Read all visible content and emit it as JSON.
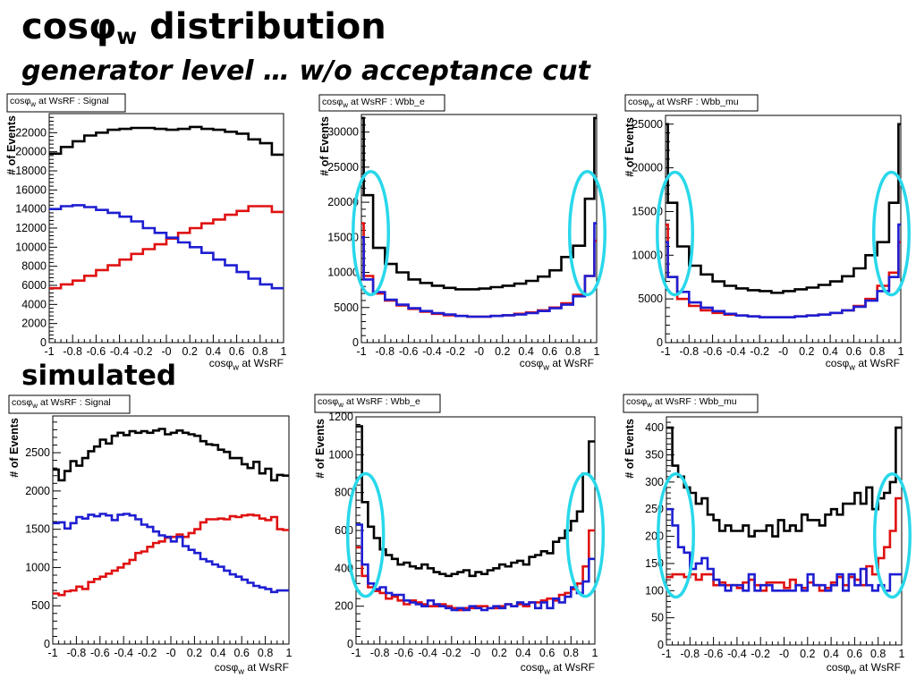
{
  "header": {
    "title_prefix": "cos",
    "title_phi": "φ",
    "title_sub": "w",
    "title_rest": " distribution",
    "subtitle": "generator level … w/o acceptance cut",
    "section_label": "simulated"
  },
  "colors": {
    "total": "#000000",
    "component_red": "#e01010",
    "component_blue": "#1e1ed2",
    "highlight_ellipse": "#29d8ea"
  },
  "chart_data": [
    {
      "type": "histogram",
      "panel": "generator-signal",
      "title_main": "cosφ",
      "title_sub": "w",
      "title_rest": " at WsRF : Signal",
      "xlabel_main": "cosφ",
      "xlabel_sub": "w",
      "xlabel_rest": " at WsRF",
      "ylabel": "# of Events",
      "xlim": [
        -1,
        1
      ],
      "ylim": [
        0,
        24000
      ],
      "x_ticks": [
        "-1",
        "-0.8",
        "-0.6",
        "-0.4",
        "-0.2",
        "-0",
        "0.2",
        "0.4",
        "0.6",
        "0.8",
        "1"
      ],
      "y_ticks": [
        0,
        2000,
        4000,
        6000,
        8000,
        10000,
        12000,
        14000,
        16000,
        18000,
        20000,
        22000
      ],
      "bin_edges": [
        -1,
        -0.9,
        -0.8,
        -0.7,
        -0.6,
        -0.5,
        -0.4,
        -0.3,
        -0.2,
        -0.1,
        0,
        0.1,
        0.2,
        0.3,
        0.4,
        0.5,
        0.6,
        0.7,
        0.8,
        0.9,
        1
      ],
      "series": [
        {
          "color": "#000000",
          "values": [
            19800,
            20500,
            21100,
            21700,
            22000,
            22300,
            22400,
            22500,
            22500,
            22400,
            22300,
            22400,
            22600,
            22400,
            22300,
            22100,
            21900,
            21300,
            20900,
            19700
          ]
        },
        {
          "color": "#e01010",
          "values": [
            5700,
            6100,
            6500,
            7000,
            7600,
            8100,
            8700,
            9300,
            9800,
            10300,
            10900,
            11500,
            12000,
            12500,
            12900,
            13400,
            13800,
            14300,
            14300,
            13700
          ]
        },
        {
          "color": "#1e1ed2",
          "values": [
            14000,
            14300,
            14400,
            14200,
            13900,
            13600,
            13200,
            12700,
            12000,
            11500,
            11000,
            10500,
            10000,
            9400,
            8700,
            8100,
            7400,
            6700,
            6100,
            5700
          ]
        }
      ],
      "ellipses": false
    },
    {
      "type": "histogram",
      "panel": "generator-wbb-e",
      "title_main": "cosφ",
      "title_sub": "w",
      "title_rest": " at WsRF : Wbb_e",
      "xlabel_main": "cosφ",
      "xlabel_sub": "w",
      "xlabel_rest": " at WsRF",
      "ylabel": "# of Events",
      "xlim": [
        -1,
        1
      ],
      "ylim": [
        0,
        32500
      ],
      "x_ticks": [
        "-1",
        "-0.8",
        "-0.6",
        "-0.4",
        "-0.2",
        "-0",
        "0.2",
        "0.4",
        "0.6",
        "0.8",
        "1"
      ],
      "y_ticks": [
        0,
        5000,
        10000,
        15000,
        20000,
        25000,
        30000
      ],
      "bin_edges": [
        -1,
        -0.98,
        -0.9,
        -0.8,
        -0.7,
        -0.6,
        -0.5,
        -0.4,
        -0.3,
        -0.2,
        -0.1,
        0,
        0.1,
        0.2,
        0.3,
        0.4,
        0.5,
        0.6,
        0.7,
        0.8,
        0.9,
        0.98,
        1
      ],
      "series": [
        {
          "color": "#000000",
          "values": [
            32000,
            21000,
            13500,
            11200,
            10000,
            9000,
            8500,
            8100,
            7800,
            7600,
            7600,
            7700,
            7900,
            8100,
            8400,
            8800,
            9400,
            10300,
            12200,
            13800,
            20500,
            32000
          ]
        },
        {
          "color": "#e01010",
          "values": [
            17000,
            9500,
            7000,
            6000,
            5300,
            4800,
            4400,
            4100,
            3900,
            3800,
            3700,
            3700,
            3800,
            3900,
            4100,
            4300,
            4600,
            5000,
            5600,
            6800,
            9500,
            14500
          ]
        },
        {
          "color": "#1e1ed2",
          "values": [
            15000,
            9000,
            7200,
            6100,
            5400,
            4900,
            4500,
            4200,
            4000,
            3800,
            3700,
            3700,
            3800,
            3900,
            4000,
            4200,
            4500,
            4900,
            5400,
            6600,
            9500,
            17000
          ]
        }
      ],
      "ellipses": true
    },
    {
      "type": "histogram",
      "panel": "generator-wbb-mu",
      "title_main": "cosφ",
      "title_sub": "w",
      "title_rest": " at WsRF : Wbb_mu",
      "xlabel_main": "cosφ",
      "xlabel_sub": "w",
      "xlabel_rest": " at WsRF",
      "ylabel": "# of Events",
      "xlim": [
        -1,
        1
      ],
      "ylim": [
        0,
        26000
      ],
      "x_ticks": [
        "-1",
        "-0.8",
        "-0.6",
        "-0.4",
        "-0.2",
        "-0",
        "0.2",
        "0.4",
        "0.6",
        "0.8",
        "1"
      ],
      "y_ticks": [
        0,
        5000,
        10000,
        15000,
        20000,
        25000
      ],
      "bin_edges": [
        -1,
        -0.98,
        -0.9,
        -0.8,
        -0.7,
        -0.6,
        -0.5,
        -0.4,
        -0.3,
        -0.2,
        -0.1,
        0,
        0.1,
        0.2,
        0.3,
        0.4,
        0.5,
        0.6,
        0.7,
        0.8,
        0.9,
        0.98,
        1
      ],
      "series": [
        {
          "color": "#000000",
          "values": [
            25000,
            16000,
            11000,
            8800,
            7800,
            7000,
            6500,
            6200,
            6000,
            5900,
            5700,
            5900,
            6100,
            6300,
            6600,
            7000,
            7600,
            8500,
            10000,
            11500,
            16000,
            25000
          ]
        },
        {
          "color": "#e01010",
          "values": [
            13500,
            7500,
            5000,
            4200,
            3700,
            3400,
            3200,
            3100,
            3000,
            2900,
            2900,
            2900,
            3000,
            3100,
            3200,
            3400,
            3700,
            4200,
            5000,
            6500,
            8000,
            11500
          ]
        },
        {
          "color": "#1e1ed2",
          "values": [
            11500,
            7500,
            5800,
            4600,
            4000,
            3600,
            3300,
            3100,
            3000,
            2900,
            2900,
            2900,
            3000,
            3100,
            3200,
            3400,
            3700,
            4100,
            4800,
            5900,
            7500,
            13500
          ]
        }
      ],
      "ellipses": true
    },
    {
      "type": "histogram",
      "panel": "simulated-signal",
      "title_main": "cosφ",
      "title_sub": "w",
      "title_rest": " at WsRF : Signal",
      "xlabel_main": "cosφ",
      "xlabel_sub": "w",
      "xlabel_rest": " at WsRF",
      "ylabel": "# of Events",
      "xlim": [
        -1,
        1
      ],
      "ylim": [
        0,
        2980
      ],
      "x_ticks": [
        "-1",
        "-0.8",
        "-0.6",
        "-0.4",
        "-0.2",
        "-0",
        "0.2",
        "0.4",
        "0.6",
        "0.8",
        "1"
      ],
      "y_ticks": [
        0,
        500,
        1000,
        1500,
        2000,
        2500
      ],
      "bin_edges": [
        -1,
        -0.95,
        -0.9,
        -0.85,
        -0.8,
        -0.75,
        -0.7,
        -0.65,
        -0.6,
        -0.55,
        -0.5,
        -0.45,
        -0.4,
        -0.35,
        -0.3,
        -0.25,
        -0.2,
        -0.15,
        -0.1,
        -0.05,
        0,
        0.05,
        0.1,
        0.15,
        0.2,
        0.25,
        0.3,
        0.35,
        0.4,
        0.45,
        0.5,
        0.55,
        0.6,
        0.65,
        0.7,
        0.75,
        0.8,
        0.85,
        0.9,
        0.95,
        1
      ],
      "series": [
        {
          "color": "#000000",
          "values": [
            2280,
            2140,
            2260,
            2390,
            2330,
            2430,
            2520,
            2580,
            2670,
            2620,
            2720,
            2760,
            2730,
            2780,
            2760,
            2780,
            2760,
            2790,
            2810,
            2740,
            2760,
            2790,
            2760,
            2740,
            2720,
            2650,
            2610,
            2600,
            2540,
            2510,
            2430,
            2430,
            2350,
            2300,
            2380,
            2230,
            2290,
            2140,
            2210,
            2200
          ]
        },
        {
          "color": "#e01010",
          "values": [
            660,
            640,
            690,
            700,
            750,
            720,
            810,
            850,
            880,
            920,
            960,
            1000,
            1050,
            1100,
            1190,
            1210,
            1270,
            1320,
            1340,
            1390,
            1400,
            1430,
            1400,
            1450,
            1500,
            1590,
            1630,
            1630,
            1640,
            1630,
            1670,
            1660,
            1680,
            1690,
            1680,
            1640,
            1620,
            1660,
            1500,
            1490
          ]
        },
        {
          "color": "#1e1ed2",
          "values": [
            1580,
            1590,
            1510,
            1580,
            1660,
            1640,
            1690,
            1670,
            1700,
            1680,
            1620,
            1690,
            1700,
            1680,
            1630,
            1560,
            1530,
            1470,
            1420,
            1400,
            1340,
            1400,
            1280,
            1230,
            1190,
            1110,
            1080,
            1040,
            1010,
            960,
            910,
            880,
            840,
            800,
            760,
            740,
            720,
            680,
            700,
            700
          ]
        }
      ],
      "ellipses": false
    },
    {
      "type": "histogram",
      "panel": "simulated-wbb-e",
      "title_main": "cosφ",
      "title_sub": "w",
      "title_rest": " at WsRF : Wbb_e",
      "xlabel_main": "cosφ",
      "xlabel_sub": "w",
      "xlabel_rest": " at WsRF",
      "ylabel": "# of Events",
      "xlim": [
        -1,
        1
      ],
      "ylim": [
        0,
        1200
      ],
      "x_ticks": [
        "-1",
        "-0.8",
        "-0.6",
        "-0.4",
        "-0.2",
        "-0",
        "0.2",
        "0.4",
        "0.6",
        "0.8",
        "1"
      ],
      "y_ticks": [
        0,
        200,
        400,
        600,
        800,
        1000,
        1200
      ],
      "bin_edges": [
        -1,
        -0.95,
        -0.9,
        -0.85,
        -0.8,
        -0.75,
        -0.7,
        -0.65,
        -0.6,
        -0.55,
        -0.5,
        -0.45,
        -0.4,
        -0.35,
        -0.3,
        -0.25,
        -0.2,
        -0.15,
        -0.1,
        -0.05,
        0,
        0.05,
        0.1,
        0.15,
        0.2,
        0.25,
        0.3,
        0.35,
        0.4,
        0.45,
        0.5,
        0.55,
        0.6,
        0.65,
        0.7,
        0.75,
        0.8,
        0.85,
        0.9,
        0.95,
        1
      ],
      "series": [
        {
          "color": "#000000",
          "values": [
            1150,
            750,
            620,
            560,
            500,
            470,
            450,
            420,
            430,
            410,
            400,
            420,
            400,
            380,
            370,
            360,
            370,
            380,
            390,
            360,
            380,
            370,
            390,
            400,
            420,
            410,
            430,
            440,
            420,
            460,
            470,
            490,
            480,
            540,
            560,
            600,
            650,
            700,
            900,
            1070
          ]
        },
        {
          "color": "#e01010",
          "values": [
            510,
            360,
            300,
            280,
            270,
            240,
            250,
            230,
            210,
            230,
            220,
            210,
            200,
            200,
            210,
            200,
            190,
            180,
            190,
            190,
            200,
            200,
            190,
            190,
            200,
            210,
            200,
            210,
            200,
            220,
            220,
            230,
            240,
            230,
            260,
            270,
            290,
            320,
            410,
            600
          ]
        },
        {
          "color": "#1e1ed2",
          "values": [
            630,
            420,
            320,
            290,
            300,
            270,
            260,
            260,
            230,
            220,
            210,
            200,
            230,
            210,
            200,
            190,
            180,
            190,
            180,
            200,
            190,
            180,
            190,
            200,
            190,
            210,
            200,
            220,
            210,
            220,
            190,
            220,
            190,
            240,
            220,
            250,
            300,
            270,
            330,
            450
          ]
        }
      ],
      "ellipses": true
    },
    {
      "type": "histogram",
      "panel": "simulated-wbb-mu",
      "title_main": "cosφ",
      "title_sub": "w",
      "title_rest": " at WsRF : Wbb_mu",
      "xlabel_main": "cosφ",
      "xlabel_sub": "w",
      "xlabel_rest": " at WsRF",
      "ylabel": "# of Events",
      "xlim": [
        -1,
        1
      ],
      "ylim": [
        0,
        420
      ],
      "x_ticks": [
        "-1",
        "-0.8",
        "-0.6",
        "-0.4",
        "-0.2",
        "-0",
        "0.2",
        "0.4",
        "0.6",
        "0.8",
        "1"
      ],
      "y_ticks": [
        0,
        50,
        100,
        150,
        200,
        250,
        300,
        350,
        400
      ],
      "bin_edges": [
        -1,
        -0.95,
        -0.9,
        -0.85,
        -0.8,
        -0.75,
        -0.7,
        -0.65,
        -0.6,
        -0.55,
        -0.5,
        -0.45,
        -0.4,
        -0.35,
        -0.3,
        -0.25,
        -0.2,
        -0.15,
        -0.1,
        -0.05,
        0,
        0.05,
        0.1,
        0.15,
        0.2,
        0.25,
        0.3,
        0.35,
        0.4,
        0.45,
        0.5,
        0.55,
        0.6,
        0.65,
        0.7,
        0.75,
        0.8,
        0.85,
        0.9,
        0.95,
        1
      ],
      "series": [
        {
          "color": "#000000",
          "values": [
            400,
            330,
            310,
            290,
            280,
            260,
            270,
            240,
            230,
            210,
            220,
            210,
            210,
            220,
            200,
            210,
            210,
            220,
            200,
            230,
            210,
            220,
            210,
            240,
            230,
            230,
            220,
            240,
            250,
            240,
            260,
            260,
            280,
            260,
            290,
            250,
            270,
            280,
            300,
            400
          ]
        },
        {
          "color": "#e01010",
          "values": [
            125,
            130,
            130,
            125,
            130,
            120,
            130,
            130,
            110,
            115,
            110,
            110,
            105,
            115,
            120,
            110,
            100,
            115,
            115,
            115,
            105,
            120,
            110,
            105,
            115,
            110,
            100,
            105,
            115,
            125,
            110,
            125,
            120,
            110,
            145,
            130,
            160,
            180,
            210,
            270
          ]
        },
        {
          "color": "#1e1ed2",
          "values": [
            250,
            220,
            180,
            170,
            140,
            150,
            160,
            140,
            120,
            110,
            100,
            110,
            110,
            100,
            130,
            100,
            110,
            110,
            100,
            100,
            100,
            100,
            110,
            100,
            130,
            110,
            110,
            100,
            110,
            130,
            100,
            130,
            110,
            140,
            110,
            100,
            110,
            100,
            130,
            130
          ]
        }
      ],
      "ellipses": true
    }
  ]
}
